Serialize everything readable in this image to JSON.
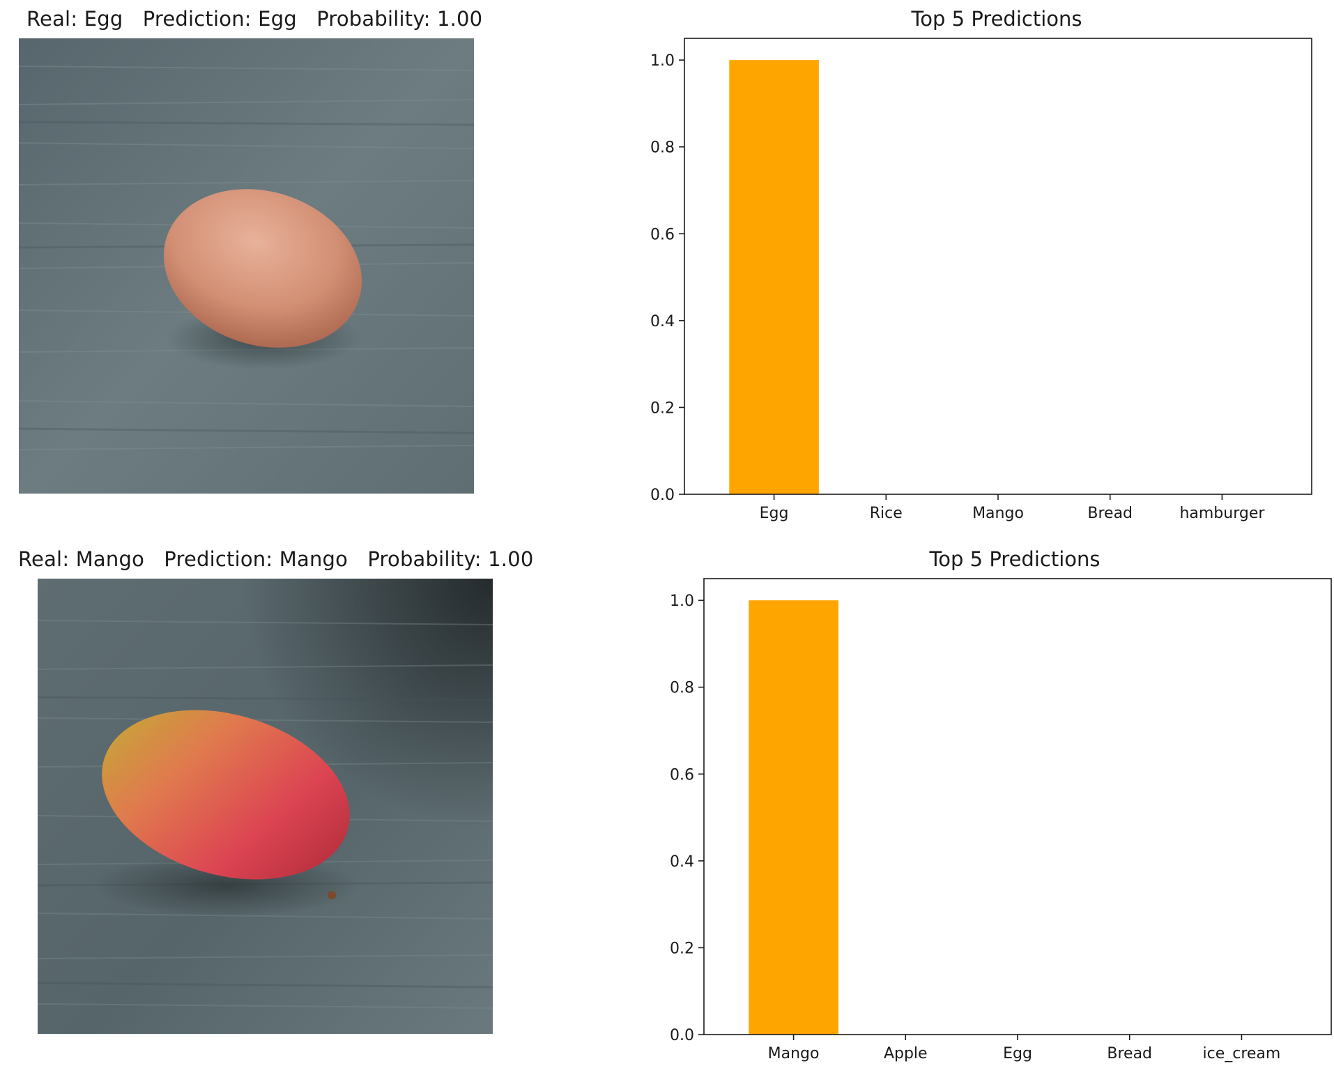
{
  "panels": [
    {
      "real_label": "Real: Egg",
      "prediction_label": "Prediction: Egg",
      "probability_label": "Probability: 1.00",
      "photo_subject": "egg",
      "chart_title": "Top 5 Predictions"
    },
    {
      "real_label": "Real: Mango",
      "prediction_label": "Prediction: Mango",
      "probability_label": "Probability: 1.00",
      "photo_subject": "mango",
      "chart_title": "Top 5 Predictions"
    }
  ],
  "chart_data": [
    {
      "type": "bar",
      "title": "Top 5 Predictions",
      "categories": [
        "Egg",
        "Rice",
        "Mango",
        "Bread",
        "hamburger"
      ],
      "values": [
        1.0,
        0.0,
        0.0,
        0.0,
        0.0
      ],
      "ylim": [
        0,
        1.05
      ],
      "yticks": [
        "0.0",
        "0.2",
        "0.4",
        "0.6",
        "0.8",
        "1.0"
      ],
      "bar_color": "#ffa500",
      "grid": false
    },
    {
      "type": "bar",
      "title": "Top 5 Predictions",
      "categories": [
        "Mango",
        "Apple",
        "Egg",
        "Bread",
        "ice_cream"
      ],
      "values": [
        1.0,
        0.0,
        0.0,
        0.0,
        0.0
      ],
      "ylim": [
        0,
        1.05
      ],
      "yticks": [
        "0.0",
        "0.2",
        "0.4",
        "0.6",
        "0.8",
        "1.0"
      ],
      "bar_color": "#ffa500",
      "grid": false
    }
  ]
}
